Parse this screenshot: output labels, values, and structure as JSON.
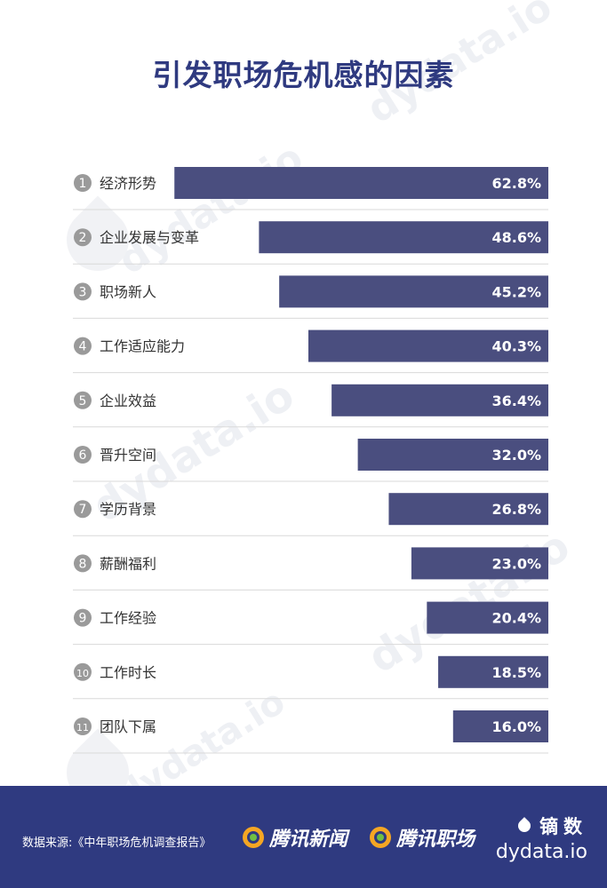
{
  "title": "引发职场危机感的因素",
  "chart_data": {
    "type": "bar",
    "orientation": "horizontal",
    "categories": [
      "经济形势",
      "企业发展与变革",
      "职场新人",
      "工作适应能力",
      "企业效益",
      "晋升空间",
      "学历背景",
      "薪酬福利",
      "工作经验",
      "工作时长",
      "团队下属"
    ],
    "ranks": [
      "1",
      "2",
      "3",
      "4",
      "5",
      "6",
      "7",
      "8",
      "9",
      "10",
      "11"
    ],
    "values": [
      62.8,
      48.6,
      45.2,
      40.3,
      36.4,
      32.0,
      26.8,
      23.0,
      20.4,
      18.5,
      16.0
    ],
    "value_labels": [
      "62.8%",
      "48.6%",
      "45.2%",
      "40.3%",
      "36.4%",
      "32.0%",
      "26.8%",
      "23.0%",
      "20.4%",
      "18.5%",
      "16.0%"
    ],
    "bar_color": "#4a4e7f",
    "xlim": [
      0,
      70
    ],
    "grid": false
  },
  "footer": {
    "source": "数据来源:《中年职场危机调查报告》",
    "logo1": "腾讯新闻",
    "logo2": "腾讯职场",
    "brand_cn": "镝数",
    "brand_en": "dydata.io"
  },
  "watermark": {
    "text": "dydata.io"
  },
  "colors": {
    "title": "#2f3a80",
    "footer_bg": "#2f3a80",
    "bar": "#4a4e7f",
    "rank_circle": "#9a9a9a"
  }
}
